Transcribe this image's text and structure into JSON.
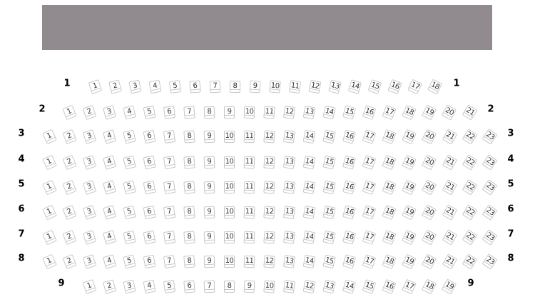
{
  "stage": {
    "color": "#918b8f"
  },
  "seat_border_color": "#c8c8c8",
  "rows": [
    {
      "label": "1",
      "seats": 18
    },
    {
      "label": "2",
      "seats": 21
    },
    {
      "label": "3",
      "seats": 23
    },
    {
      "label": "4",
      "seats": 23
    },
    {
      "label": "5",
      "seats": 23
    },
    {
      "label": "6",
      "seats": 23
    },
    {
      "label": "7",
      "seats": 23
    },
    {
      "label": "8",
      "seats": 23
    },
    {
      "label": "9",
      "seats": 19
    }
  ]
}
